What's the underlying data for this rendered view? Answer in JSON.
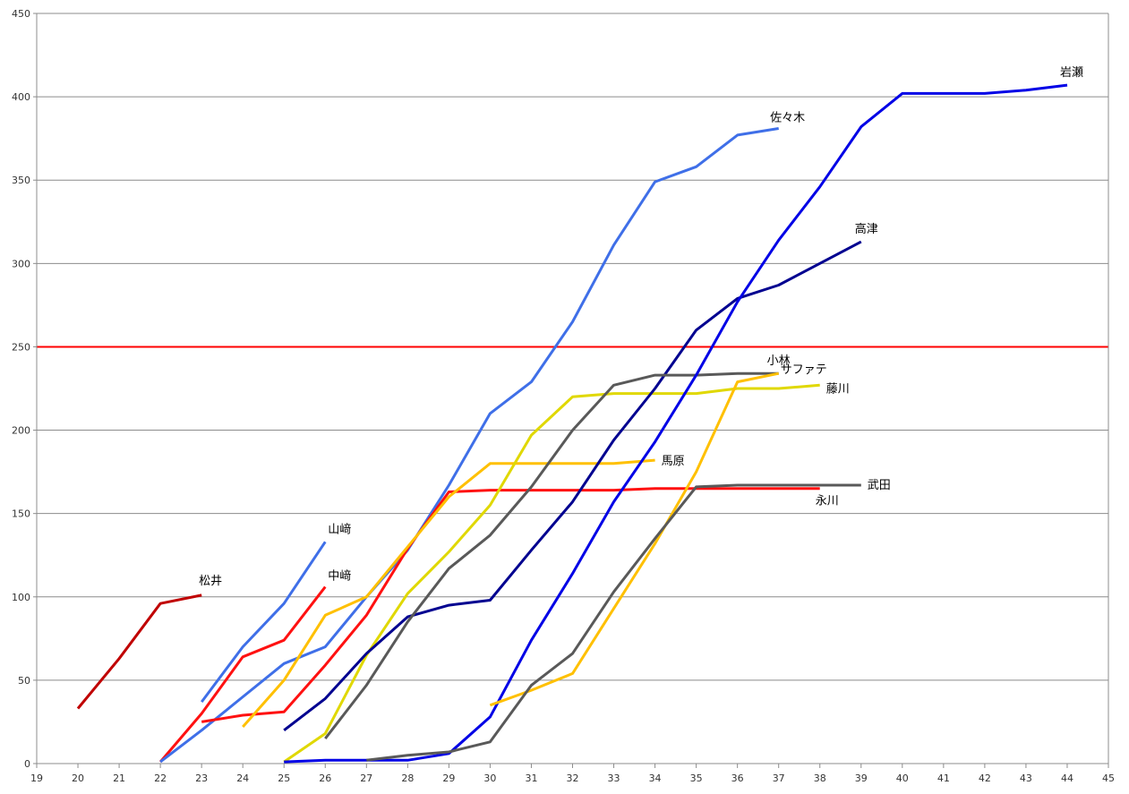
{
  "chart_data": {
    "type": "line",
    "title": "",
    "xlabel": "",
    "ylabel": "",
    "xlim": [
      19,
      45
    ],
    "ylim": [
      0,
      450
    ],
    "xticks": [
      19,
      20,
      21,
      22,
      23,
      24,
      25,
      26,
      27,
      28,
      29,
      30,
      31,
      32,
      33,
      34,
      35,
      36,
      37,
      38,
      39,
      40,
      41,
      42,
      43,
      44,
      45
    ],
    "yticks": [
      0,
      50,
      100,
      150,
      200,
      250,
      300,
      350,
      400,
      450
    ],
    "grid": true,
    "legend": "none (labels at line ends)",
    "reference_line": {
      "y": 250,
      "color": "#ff0000"
    },
    "series": [
      {
        "name": "松井",
        "color": "#c00000",
        "x": [
          20,
          21,
          22,
          23
        ],
        "y": [
          33,
          63,
          96,
          101
        ]
      },
      {
        "name": "山﨑",
        "color": "#3f6fe8",
        "x": [
          23,
          24,
          25,
          26
        ],
        "y": [
          37,
          70,
          96,
          133
        ]
      },
      {
        "name": "中﨑",
        "color": "#ff1111",
        "x": [
          22,
          23,
          24,
          25,
          26
        ],
        "y": [
          1,
          30,
          64,
          74,
          106
        ]
      },
      {
        "name": "佐々木",
        "color": "#3f6fe8",
        "x": [
          22,
          23,
          24,
          25,
          26,
          27,
          28,
          29,
          30,
          31,
          32,
          33,
          34,
          35,
          36,
          37
        ],
        "y": [
          1,
          20,
          40,
          60,
          70,
          100,
          128,
          167,
          210,
          229,
          265,
          311,
          349,
          358,
          377,
          381
        ]
      },
      {
        "name": "永川",
        "color": "#ff1111",
        "x": [
          23,
          24,
          25,
          26,
          27,
          28,
          29,
          30,
          31,
          32,
          33,
          34,
          35,
          36,
          37,
          38
        ],
        "y": [
          25,
          29,
          31,
          59,
          89,
          129,
          163,
          164,
          164,
          164,
          164,
          165,
          165,
          165,
          165,
          165
        ]
      },
      {
        "name": "馬原",
        "color": "#ffc000",
        "x": [
          24,
          25,
          26,
          27,
          28,
          29,
          30,
          31,
          32,
          33,
          34
        ],
        "y": [
          22,
          50,
          89,
          100,
          130,
          160,
          180,
          180,
          180,
          180,
          182
        ]
      },
      {
        "name": "藤川",
        "color": "#e0d800",
        "x": [
          25,
          26,
          27,
          28,
          29,
          30,
          31,
          32,
          33,
          34,
          35,
          36,
          37,
          38
        ],
        "y": [
          1,
          18,
          65,
          102,
          127,
          155,
          197,
          220,
          222,
          222,
          222,
          225,
          225,
          227
        ]
      },
      {
        "name": "高津",
        "color": "#000090",
        "x": [
          25,
          26,
          27,
          28,
          29,
          30,
          31,
          32,
          33,
          34,
          35,
          36,
          37,
          38,
          39
        ],
        "y": [
          20,
          39,
          66,
          88,
          95,
          98,
          128,
          157,
          194,
          225,
          260,
          279,
          287,
          300,
          313
        ]
      },
      {
        "name": "小林",
        "color": "#595959",
        "x": [
          26,
          27,
          28,
          29,
          30,
          31,
          32,
          33,
          34,
          35,
          36,
          37
        ],
        "y": [
          15,
          47,
          85,
          117,
          137,
          166,
          200,
          227,
          233,
          233,
          234,
          234
        ]
      },
      {
        "name": "岩瀬",
        "color": "#0000e6",
        "x": [
          25,
          26,
          27,
          28,
          29,
          30,
          31,
          32,
          33,
          34,
          35,
          36,
          37,
          38,
          39,
          40,
          41,
          42,
          43,
          44
        ],
        "y": [
          1,
          2,
          2,
          2,
          6,
          28,
          74,
          114,
          157,
          193,
          233,
          277,
          314,
          346,
          382,
          402,
          402,
          402,
          404,
          407
        ]
      },
      {
        "name": "サファテ",
        "color": "#ffc000",
        "x": [
          30,
          31,
          32,
          33,
          34,
          35,
          36,
          37
        ],
        "y": [
          35,
          44,
          54,
          93,
          132,
          175,
          229,
          234
        ]
      },
      {
        "name": "武田",
        "color": "#595959",
        "x": [
          27,
          28,
          29,
          30,
          31,
          32,
          33,
          34,
          35,
          36,
          37,
          38,
          39
        ],
        "y": [
          2,
          5,
          7,
          13,
          47,
          66,
          103,
          135,
          166,
          167,
          167,
          167,
          167
        ]
      }
    ]
  }
}
